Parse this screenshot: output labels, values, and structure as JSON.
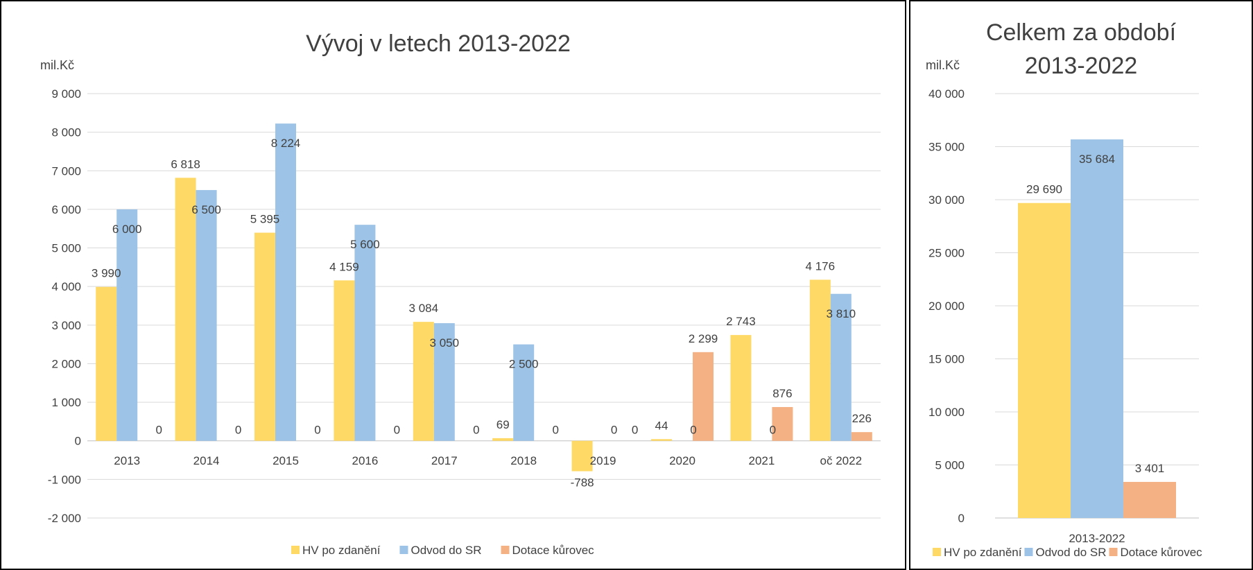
{
  "colors": {
    "hv": "#FFD966",
    "odvod": "#9DC3E6",
    "dotace": "#F4B183",
    "grid": "#D9D9D9",
    "axis": "#BFBFBF"
  },
  "chart_data": [
    {
      "type": "bar",
      "title": "Vývoj v letech 2013-2022",
      "ylabel": "mil.Kč",
      "ylim": [
        -2000,
        9000
      ],
      "yticks": [
        "-2 000",
        "-1 000",
        "0",
        "1 000",
        "2 000",
        "3 000",
        "4 000",
        "5 000",
        "6 000",
        "7 000",
        "8 000",
        "9 000"
      ],
      "categories": [
        "2013",
        "2014",
        "2015",
        "2016",
        "2017",
        "2018",
        "2019",
        "2020",
        "2021",
        "oč 2022"
      ],
      "series": [
        {
          "name": "HV po zdanění",
          "values": [
            3990,
            6818,
            5395,
            4159,
            3084,
            69,
            -788,
            44,
            2743,
            4176
          ],
          "labels": [
            "3 990",
            "6 818",
            "5 395",
            "4 159",
            "3 084",
            "69",
            "-788",
            "44",
            "2 743",
            "4 176"
          ]
        },
        {
          "name": "Odvod do SR",
          "values": [
            6000,
            6500,
            8224,
            5600,
            3050,
            2500,
            0,
            0,
            0,
            3810
          ],
          "labels": [
            "6 000",
            "6 500",
            "8 224",
            "5 600",
            "3 050",
            "2 500",
            "0",
            "0",
            "0",
            "3 810"
          ]
        },
        {
          "name": "Dotace kůrovec",
          "values": [
            0,
            0,
            0,
            0,
            0,
            0,
            0,
            2299,
            876,
            226
          ],
          "labels": [
            "0",
            "0",
            "0",
            "0",
            "0",
            "0",
            "0",
            "2 299",
            "876",
            "226"
          ]
        }
      ],
      "grid": true,
      "legend": "bottom"
    },
    {
      "type": "bar",
      "title_lines": [
        "Celkem za období",
        "2013-2022"
      ],
      "ylabel": "mil.Kč",
      "ylim": [
        0,
        40000
      ],
      "yticks": [
        "0",
        "5 000",
        "10 000",
        "15 000",
        "20 000",
        "25 000",
        "30 000",
        "35 000",
        "40 000"
      ],
      "categories": [
        "2013-2022"
      ],
      "series": [
        {
          "name": "HV po zdanění",
          "values": [
            29690
          ],
          "labels": [
            "29 690"
          ]
        },
        {
          "name": "Odvod do SR",
          "values": [
            35684
          ],
          "labels": [
            "35 684"
          ]
        },
        {
          "name": "Dotace kůrovec",
          "values": [
            3401
          ],
          "labels": [
            "3 401"
          ]
        }
      ],
      "grid": true,
      "legend": "bottom"
    }
  ]
}
